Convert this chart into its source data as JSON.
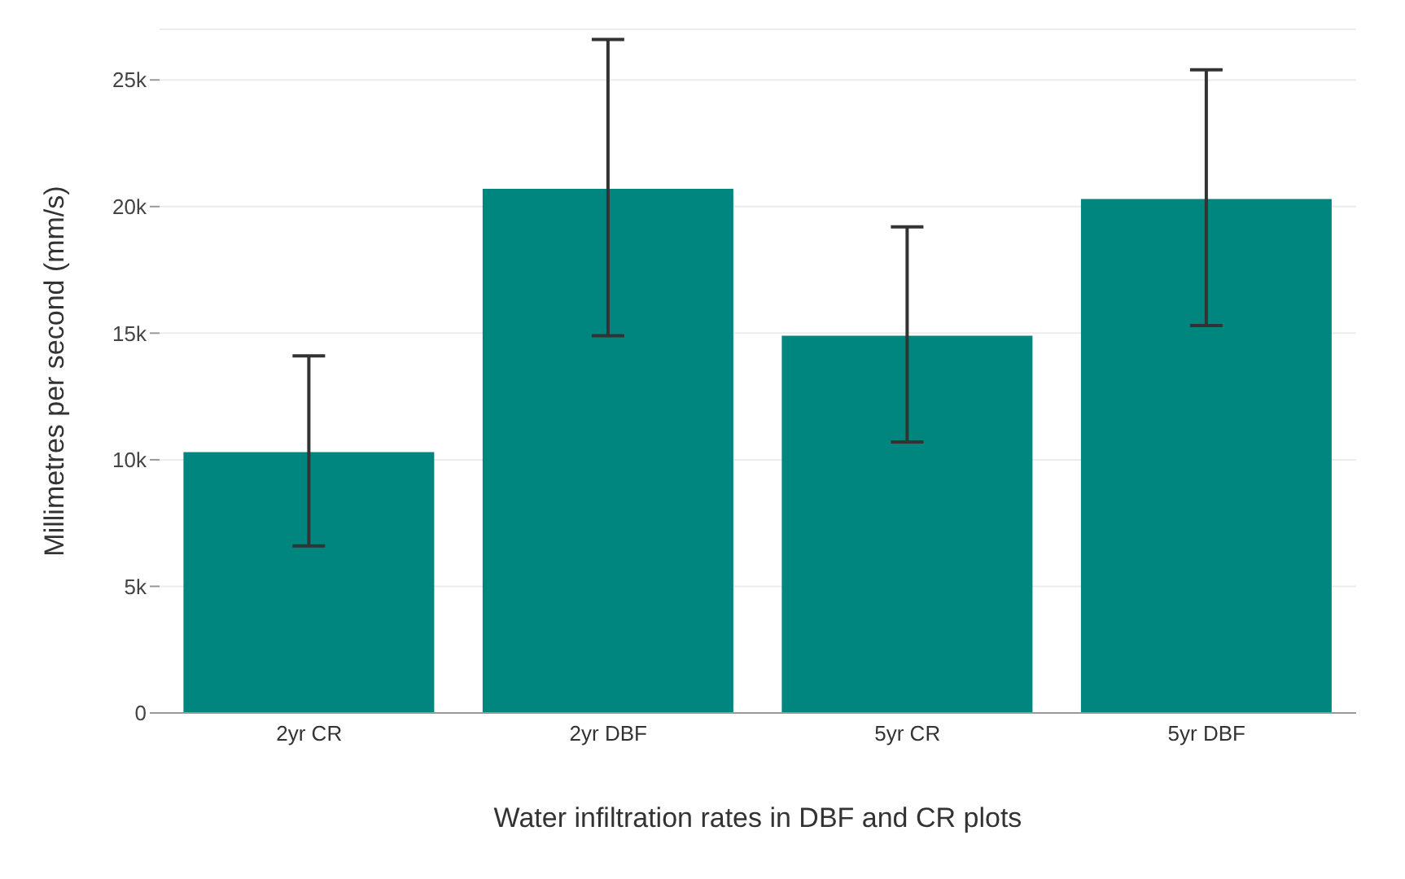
{
  "chart_data": {
    "type": "bar",
    "xlabel": "Water infiltration rates in DBF and CR plots",
    "ylabel": "Millimetres per second (mm/s)",
    "categories": [
      "2yr CR",
      "2yr DBF",
      "5yr CR",
      "5yr DBF"
    ],
    "values": [
      10300,
      20700,
      14900,
      20300
    ],
    "errors": [
      [
        6600,
        14100
      ],
      [
        14900,
        26600
      ],
      [
        10700,
        19200
      ],
      [
        15300,
        25400
      ]
    ],
    "color": "#00857f",
    "ylim": [
      0,
      27000
    ],
    "yticks": [
      0,
      {
        "value": 5000,
        "label": "5k"
      },
      {
        "value": 10000,
        "label": "10k"
      },
      {
        "value": 15000,
        "label": "15k"
      },
      {
        "value": 20000,
        "label": "20k"
      },
      {
        "value": 25000,
        "label": "25k"
      }
    ],
    "grid": "y"
  }
}
